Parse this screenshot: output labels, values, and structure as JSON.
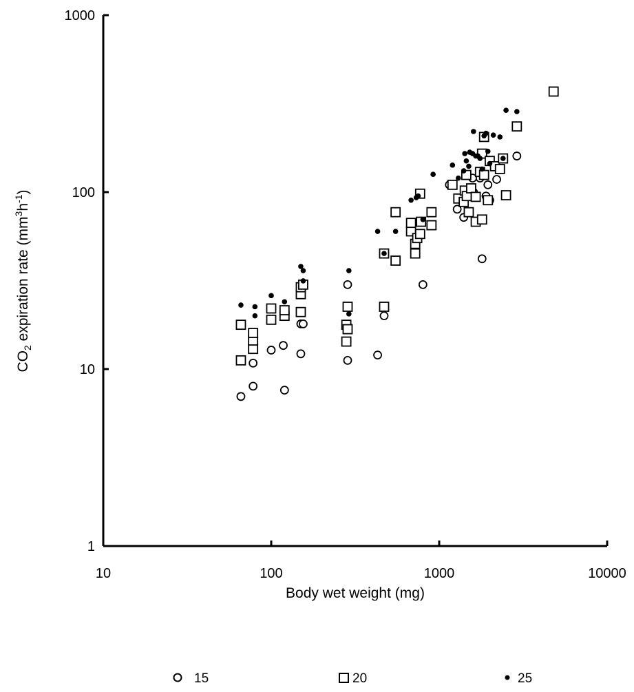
{
  "chart_data": {
    "type": "scatter",
    "title": "",
    "xlabel": "Body wet weight (mg)",
    "ylabel": {
      "pre": "CO",
      "sub": "2",
      "mid": " expiration rate (mm",
      "sup1": "3",
      "mid2": "h",
      "sup2": "-1",
      "post": ")"
    },
    "x_scale": "log",
    "y_scale": "log",
    "xlim": [
      10,
      10000
    ],
    "ylim": [
      1,
      1000
    ],
    "x_ticks": [
      10,
      100,
      1000,
      10000
    ],
    "x_tick_labels": [
      "10",
      "100",
      "1000",
      "10000"
    ],
    "y_ticks": [
      1,
      10,
      100,
      1000
    ],
    "y_tick_labels": [
      "1",
      "10",
      "100",
      "1000"
    ],
    "grid": false,
    "legend_position": "bottom",
    "series": [
      {
        "name": "15",
        "marker": "open-circle",
        "points": [
          [
            66,
            7.0
          ],
          [
            78,
            8.0
          ],
          [
            120,
            7.6
          ],
          [
            150,
            12.2
          ],
          [
            78,
            10.8
          ],
          [
            100,
            12.8
          ],
          [
            118,
            13.6
          ],
          [
            150,
            18.0
          ],
          [
            155,
            18.0
          ],
          [
            285,
            11.2
          ],
          [
            285,
            30.0
          ],
          [
            430,
            12.0
          ],
          [
            470,
            20.0
          ],
          [
            800,
            30.0
          ],
          [
            1150,
            110
          ],
          [
            1280,
            80
          ],
          [
            1400,
            72
          ],
          [
            1580,
            120
          ],
          [
            1600,
            100
          ],
          [
            1750,
            120
          ],
          [
            1800,
            42
          ],
          [
            1900,
            95
          ],
          [
            1950,
            110
          ],
          [
            2000,
            90
          ],
          [
            2200,
            118
          ],
          [
            2900,
            160
          ]
        ]
      },
      {
        "name": "20",
        "marker": "open-square",
        "points": [
          [
            66,
            11.2
          ],
          [
            66,
            17.8
          ],
          [
            78,
            13.0
          ],
          [
            78,
            14.5
          ],
          [
            78,
            16.0
          ],
          [
            100,
            19.0
          ],
          [
            100,
            22.0
          ],
          [
            120,
            20.0
          ],
          [
            120,
            21.5
          ],
          [
            150,
            21.0
          ],
          [
            150,
            26.5
          ],
          [
            150,
            29.0
          ],
          [
            155,
            30.0
          ],
          [
            280,
            14.3
          ],
          [
            280,
            17.8
          ],
          [
            285,
            16.8
          ],
          [
            285,
            22.5
          ],
          [
            470,
            22.5
          ],
          [
            470,
            45.0
          ],
          [
            550,
            41.0
          ],
          [
            550,
            77.0
          ],
          [
            680,
            60.0
          ],
          [
            680,
            67.0
          ],
          [
            720,
            45.0
          ],
          [
            720,
            51.0
          ],
          [
            740,
            55.0
          ],
          [
            770,
            58.0
          ],
          [
            770,
            98.0
          ],
          [
            780,
            68.0
          ],
          [
            900,
            77.0
          ],
          [
            900,
            65.0
          ],
          [
            1200,
            110
          ],
          [
            1300,
            92
          ],
          [
            1400,
            88
          ],
          [
            1420,
            102
          ],
          [
            1450,
            125
          ],
          [
            1460,
            95
          ],
          [
            1500,
            77
          ],
          [
            1550,
            105
          ],
          [
            1650,
            68
          ],
          [
            1650,
            94
          ],
          [
            1750,
            130
          ],
          [
            1800,
            70
          ],
          [
            1800,
            165
          ],
          [
            1850,
            205
          ],
          [
            1850,
            125
          ],
          [
            1950,
            90
          ],
          [
            2000,
            150
          ],
          [
            2150,
            140
          ],
          [
            2300,
            135
          ],
          [
            2400,
            155
          ],
          [
            2500,
            96
          ],
          [
            2900,
            235
          ],
          [
            4800,
            370
          ]
        ]
      },
      {
        "name": "25",
        "marker": "filled-dot",
        "points": [
          [
            66,
            23.0
          ],
          [
            80,
            20.0
          ],
          [
            80,
            22.5
          ],
          [
            100,
            26.0
          ],
          [
            120,
            24.0
          ],
          [
            150,
            38.0
          ],
          [
            155,
            36.0
          ],
          [
            155,
            31.5
          ],
          [
            290,
            36.0
          ],
          [
            290,
            20.5
          ],
          [
            430,
            60.0
          ],
          [
            470,
            45.0
          ],
          [
            550,
            60.0
          ],
          [
            680,
            90.0
          ],
          [
            730,
            93.0
          ],
          [
            750,
            95.0
          ],
          [
            800,
            70.0
          ],
          [
            920,
            126
          ],
          [
            1200,
            142
          ],
          [
            1300,
            120
          ],
          [
            1400,
            132
          ],
          [
            1420,
            165
          ],
          [
            1450,
            150
          ],
          [
            1500,
            140
          ],
          [
            1520,
            168
          ],
          [
            1580,
            165
          ],
          [
            1600,
            220
          ],
          [
            1650,
            160
          ],
          [
            1700,
            160
          ],
          [
            1750,
            155
          ],
          [
            1800,
            135
          ],
          [
            1850,
            208
          ],
          [
            1900,
            215
          ],
          [
            1950,
            170
          ],
          [
            2000,
            145
          ],
          [
            2100,
            210
          ],
          [
            2300,
            205
          ],
          [
            2500,
            290
          ],
          [
            2900,
            285
          ],
          [
            2400,
            155
          ]
        ]
      }
    ]
  }
}
